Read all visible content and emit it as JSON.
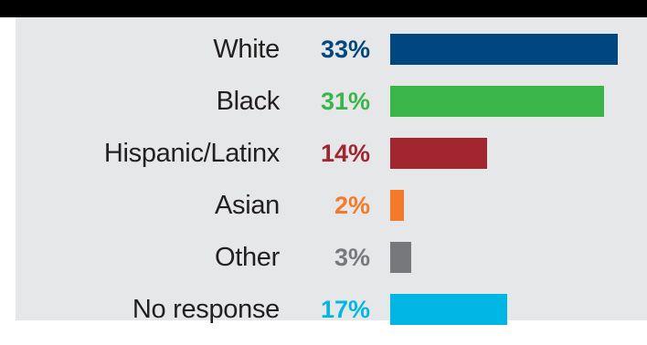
{
  "chart_data": {
    "type": "bar",
    "orientation": "horizontal",
    "categories": [
      "White",
      "Black",
      "Hispanic/Latinx",
      "Asian",
      "Other",
      "No response"
    ],
    "values": [
      33,
      31,
      14,
      2,
      3,
      17
    ],
    "value_labels": [
      "33%",
      "31%",
      "14%",
      "2%",
      "3%",
      "17%"
    ],
    "colors": [
      "#00467f",
      "#3ab54a",
      "#a22530",
      "#f47a2a",
      "#77787b",
      "#00b6e4"
    ],
    "title": "",
    "xlabel": "",
    "ylabel": "",
    "xlim": [
      0,
      33
    ],
    "grid": false,
    "legend": "none"
  }
}
